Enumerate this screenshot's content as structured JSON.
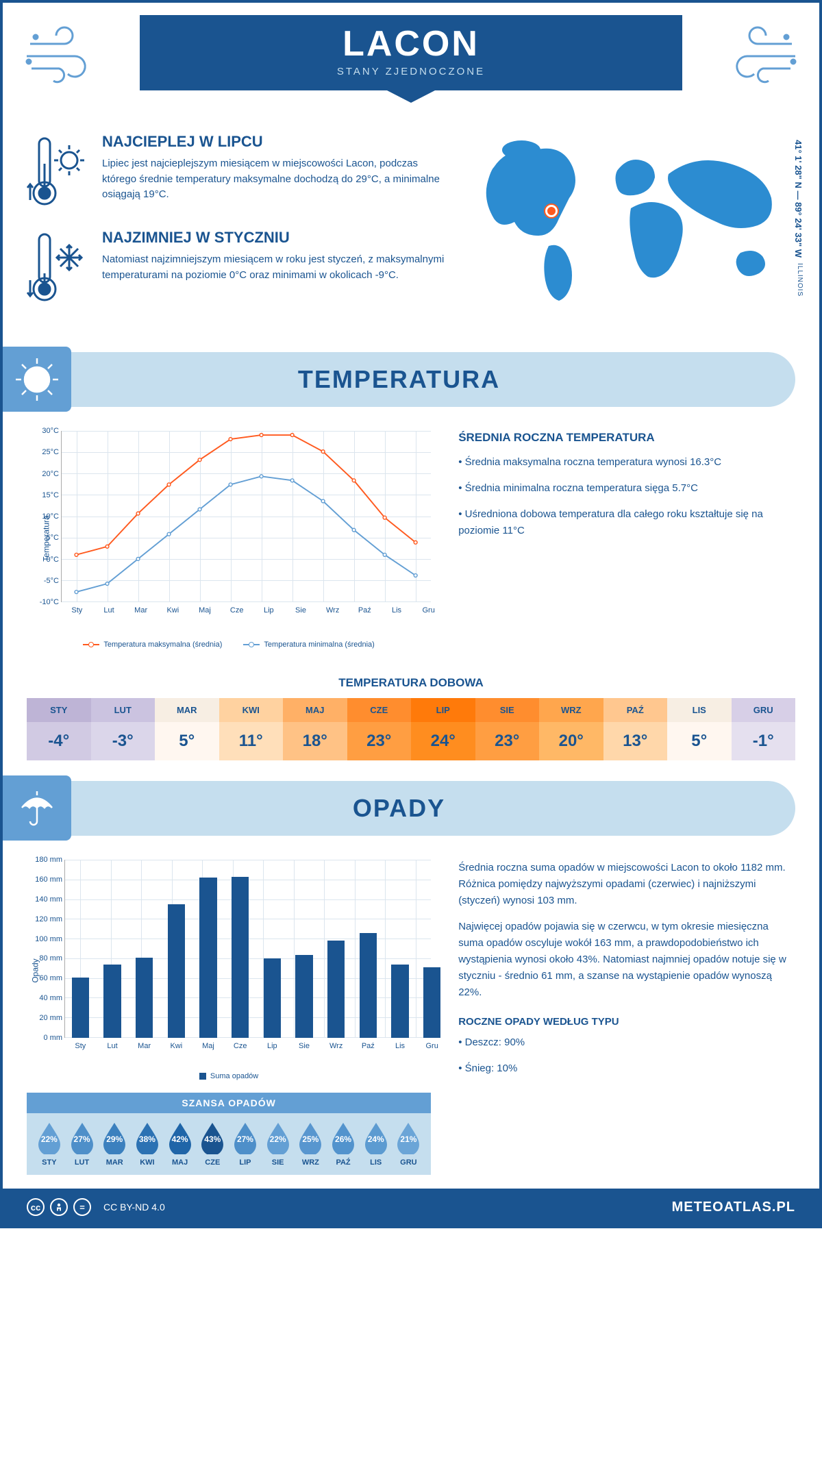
{
  "header": {
    "title": "LACON",
    "subtitle": "STANY ZJEDNOCZONE"
  },
  "location": {
    "coords": "41° 1' 28\" N — 89° 24' 33\" W",
    "state": "ILLINOIS",
    "pin_color": "#ff5a1f",
    "map_color": "#2c8cd1"
  },
  "intro": {
    "warmest": {
      "heading": "NAJCIEPLEJ W LIPCU",
      "text": "Lipiec jest najcieplejszym miesiącem w miejscowości Lacon, podczas którego średnie temperatury maksymalne dochodzą do 29°C, a minimalne osiągają 19°C."
    },
    "coldest": {
      "heading": "NAJZIMNIEJ W STYCZNIU",
      "text": "Natomiast najzimniejszym miesiącem w roku jest styczeń, z maksymalnymi temperaturami na poziomie 0°C oraz minimami w okolicach -9°C."
    }
  },
  "colors": {
    "primary": "#1a5490",
    "accent": "#639fd4",
    "light": "#c5deee",
    "series_max": "#ff5a1f",
    "series_min": "#639fd4",
    "grid": "#dbe5ee"
  },
  "temperature": {
    "section_title": "TEMPERATURA",
    "chart": {
      "type": "line",
      "months": [
        "Sty",
        "Lut",
        "Mar",
        "Kwi",
        "Maj",
        "Cze",
        "Lip",
        "Sie",
        "Wrz",
        "Paź",
        "Lis",
        "Gru"
      ],
      "max_values": [
        0,
        2,
        10,
        17,
        23,
        28,
        29,
        29,
        25,
        18,
        9,
        3
      ],
      "min_values": [
        -9,
        -7,
        -1,
        5,
        11,
        17,
        19,
        18,
        13,
        6,
        0,
        -5
      ],
      "ylim": [
        -10,
        30
      ],
      "ytick_step": 5,
      "y_unit": "°C",
      "ylabel": "Temperatura",
      "legend_max": "Temperatura maksymalna (średnia)",
      "legend_min": "Temperatura minimalna (średnia)",
      "line_width": 2,
      "marker_size": 5
    },
    "summary_heading": "ŚREDNIA ROCZNA TEMPERATURA",
    "summary_points": [
      "• Średnia maksymalna roczna temperatura wynosi 16.3°C",
      "• Średnia minimalna roczna temperatura sięga 5.7°C",
      "• Uśredniona dobowa temperatura dla całego roku kształtuje się na poziomie 11°C"
    ],
    "daily_title": "TEMPERATURA DOBOWA",
    "daily": {
      "months": [
        "STY",
        "LUT",
        "MAR",
        "KWI",
        "MAJ",
        "CZE",
        "LIP",
        "SIE",
        "WRZ",
        "PAŹ",
        "LIS",
        "GRU"
      ],
      "values": [
        "-4°",
        "-3°",
        "5°",
        "11°",
        "18°",
        "23°",
        "24°",
        "23°",
        "20°",
        "13°",
        "5°",
        "-1°"
      ],
      "bg_colors": [
        "#d1cae3",
        "#dbd6ea",
        "#fff7f0",
        "#ffdfba",
        "#ffc285",
        "#ff9e42",
        "#ff8d1f",
        "#ff9e42",
        "#ffb866",
        "#ffd7aa",
        "#fff7f0",
        "#e5e0ef"
      ],
      "header_bg_colors": [
        "#beb4d6",
        "#cbc3e0",
        "#f7eee3",
        "#ffd2a0",
        "#ffb066",
        "#ff8d2e",
        "#ff7a0a",
        "#ff8d2e",
        "#ffa64d",
        "#ffc78f",
        "#f7eee3",
        "#d7cfe7"
      ]
    }
  },
  "precipitation": {
    "section_title": "OPADY",
    "chart": {
      "type": "bar",
      "months": [
        "Sty",
        "Lut",
        "Mar",
        "Kwi",
        "Maj",
        "Cze",
        "Lip",
        "Sie",
        "Wrz",
        "Paź",
        "Lis",
        "Gru"
      ],
      "values": [
        61,
        74,
        81,
        135,
        162,
        163,
        80,
        84,
        98,
        106,
        74,
        71
      ],
      "ylim": [
        0,
        180
      ],
      "ytick_step": 20,
      "y_unit": " mm",
      "ylabel": "Opady",
      "bar_color": "#1a5490",
      "bar_width": 0.55,
      "legend": "Suma opadów"
    },
    "text_p1": "Średnia roczna suma opadów w miejscowości Lacon to około 1182 mm. Różnica pomiędzy najwyższymi opadami (czerwiec) i najniższymi (styczeń) wynosi 103 mm.",
    "text_p2": "Najwięcej opadów pojawia się w czerwcu, w tym okresie miesięczna suma opadów oscyluje wokół 163 mm, a prawdopodobieństwo ich wystąpienia wynosi około 43%. Natomiast najmniej opadów notuje się w styczniu - średnio 61 mm, a szanse na wystąpienie opadów wynoszą 22%.",
    "chance": {
      "title": "SZANSA OPADÓW",
      "months": [
        "STY",
        "LUT",
        "MAR",
        "KWI",
        "MAJ",
        "CZE",
        "LIP",
        "SIE",
        "WRZ",
        "PAŹ",
        "LIS",
        "GRU"
      ],
      "values": [
        "22%",
        "27%",
        "29%",
        "38%",
        "42%",
        "43%",
        "27%",
        "22%",
        "25%",
        "26%",
        "24%",
        "21%"
      ],
      "drop_colors": [
        "#639fd4",
        "#4e8fc9",
        "#3b80be",
        "#2c72b3",
        "#1f65a8",
        "#1a5490",
        "#4e8fc9",
        "#639fd4",
        "#5896cf",
        "#5293cd",
        "#5c9bd1",
        "#6ba5d7"
      ]
    },
    "types_heading": "ROCZNE OPADY WEDŁUG TYPU",
    "types": [
      "• Deszcz: 90%",
      "• Śnieg: 10%"
    ]
  },
  "footer": {
    "license": "CC BY-ND 4.0",
    "brand": "METEOATLAS.PL"
  }
}
